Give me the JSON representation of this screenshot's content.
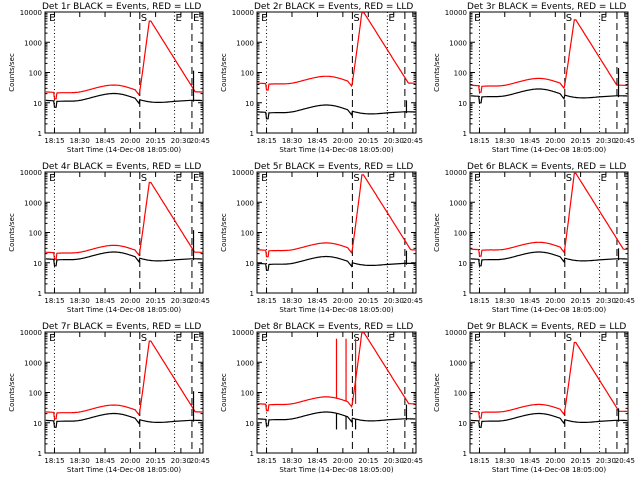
{
  "figure": {
    "background": "#ffffff",
    "events_color": "#000000",
    "lld_color": "#ff0000"
  },
  "chart_data": [
    {
      "type": "line",
      "title": "Det 1r BLACK = Events, RED = LLD",
      "xlabel": "Start Time (14-Dec-08 18:05:00)",
      "ylabel": "Counts/sec",
      "ylog": true,
      "ylim": [
        1,
        10000
      ],
      "xticks": [
        "18:15",
        "18:30",
        "18:45",
        "20:00",
        "20:15",
        "20:30",
        "20:45"
      ],
      "yticks": [
        "1",
        "10",
        "100",
        "1000",
        "10000"
      ],
      "markers": [
        "E",
        "S",
        "E",
        "E"
      ],
      "events_base": 1.0,
      "lld_offset": 0.28,
      "peak": 5000,
      "dip_events": 115
    },
    {
      "type": "line",
      "title": "Det 2r BLACK = Events, RED = LLD",
      "xlabel": "Start Time (14-Dec-08 18:05:00)",
      "ylabel": "Counts/sec",
      "ylog": true,
      "ylim": [
        1,
        10000
      ],
      "xticks": [
        "18:15",
        "18:30",
        "18:45",
        "20:00",
        "20:15",
        "20:30",
        "20:45"
      ],
      "yticks": [
        "1",
        "10",
        "100",
        "1000",
        "10000"
      ],
      "markers": [
        "E",
        "S",
        "E"
      ],
      "events_base": 0.62,
      "lld_offset": 0.95,
      "peak": 10000,
      "dip_events": 12
    },
    {
      "type": "line",
      "title": "Det 3r BLACK = Events, RED = LLD",
      "xlabel": "Start Time (14-Dec-08 18:05:00)",
      "ylabel": "Counts/sec",
      "ylog": true,
      "ylim": [
        1,
        10000
      ],
      "xticks": [
        "18:15",
        "18:30",
        "18:45",
        "20:00",
        "20:15",
        "20:30",
        "20:45"
      ],
      "yticks": [
        "1",
        "10",
        "100",
        "1000",
        "10000"
      ],
      "markers": [
        "E",
        "S",
        "E"
      ],
      "events_base": 1.15,
      "lld_offset": 0.35,
      "peak": 5500,
      "dip_events": 140
    },
    {
      "type": "line",
      "title": "Det 4r BLACK = Events, RED = LLD",
      "xlabel": "Start Time (14-Dec-08 18:05:00)",
      "ylabel": "Counts/sec",
      "ylog": true,
      "ylim": [
        1,
        10000
      ],
      "xticks": [
        "18:15",
        "18:30",
        "18:45",
        "20:00",
        "20:15",
        "20:30",
        "20:45"
      ],
      "yticks": [
        "1",
        "10",
        "100",
        "1000",
        "10000"
      ],
      "markers": [
        "E",
        "S",
        "E",
        "E"
      ],
      "events_base": 1.05,
      "lld_offset": 0.22,
      "peak": 4500,
      "dip_events": 120
    },
    {
      "type": "line",
      "title": "Det 5r BLACK = Events, RED = LLD",
      "xlabel": "Start Time (14-Dec-08 18:05:00)",
      "ylabel": "Counts/sec",
      "ylog": true,
      "ylim": [
        1,
        10000
      ],
      "xticks": [
        "18:15",
        "18:30",
        "18:45",
        "20:00",
        "20:15",
        "20:30",
        "20:45"
      ],
      "yticks": [
        "1",
        "10",
        "100",
        "1000",
        "10000"
      ],
      "markers": [
        "E",
        "S",
        "E"
      ],
      "events_base": 0.9,
      "lld_offset": 0.45,
      "peak": 8000,
      "dip_events": 25
    },
    {
      "type": "line",
      "title": "Det 6r BLACK = Events, RED = LLD",
      "xlabel": "Start Time (14-Dec-08 18:05:00)",
      "ylabel": "Counts/sec",
      "ylog": true,
      "ylim": [
        1,
        10000
      ],
      "xticks": [
        "18:15",
        "18:30",
        "18:45",
        "20:00",
        "20:15",
        "20:30",
        "20:45"
      ],
      "yticks": [
        "1",
        "10",
        "100",
        "1000",
        "10000"
      ],
      "markers": [
        "E",
        "S",
        "E"
      ],
      "events_base": 1.05,
      "lld_offset": 0.32,
      "peak": 9000,
      "dip_events": 30
    },
    {
      "type": "line",
      "title": "Det 7r BLACK = Events, RED = LLD",
      "xlabel": "Start Time (14-Dec-08 18:05:00)",
      "ylabel": "Counts/sec",
      "ylog": true,
      "ylim": [
        1,
        10000
      ],
      "xticks": [
        "18:15",
        "18:30",
        "18:45",
        "20:00",
        "20:15",
        "20:30",
        "20:45"
      ],
      "yticks": [
        "1",
        "10",
        "100",
        "1000",
        "10000"
      ],
      "markers": [
        "E",
        "S",
        "E",
        "E"
      ],
      "events_base": 1.0,
      "lld_offset": 0.28,
      "peak": 5000,
      "dip_events": 110
    },
    {
      "type": "line",
      "title": "Det 8r BLACK = Events, RED = LLD",
      "xlabel": "Start Time (14-Dec-08 18:05:00)",
      "ylabel": "Counts/sec",
      "ylog": true,
      "ylim": [
        1,
        10000
      ],
      "xticks": [
        "18:15",
        "18:30",
        "18:45",
        "20:00",
        "20:15",
        "20:30",
        "20:45"
      ],
      "yticks": [
        "1",
        "10",
        "100",
        "1000",
        "10000"
      ],
      "markers": [
        "E",
        "S",
        "E"
      ],
      "events_base": 1.05,
      "lld_offset": 0.5,
      "peak": 10000,
      "dip_events": 40,
      "spikes": true
    },
    {
      "type": "line",
      "title": "Det 9r BLACK = Events, RED = LLD",
      "xlabel": "Start Time (14-Dec-08 18:05:00)",
      "ylabel": "Counts/sec",
      "ylog": true,
      "ylim": [
        1,
        10000
      ],
      "xticks": [
        "18:15",
        "18:30",
        "18:45",
        "20:00",
        "20:15",
        "20:30",
        "20:45"
      ],
      "yticks": [
        "1",
        "10",
        "100",
        "1000",
        "10000"
      ],
      "markers": [
        "E",
        "S",
        "E"
      ],
      "events_base": 1.0,
      "lld_offset": 0.3,
      "peak": 4500,
      "dip_events": 30
    }
  ]
}
